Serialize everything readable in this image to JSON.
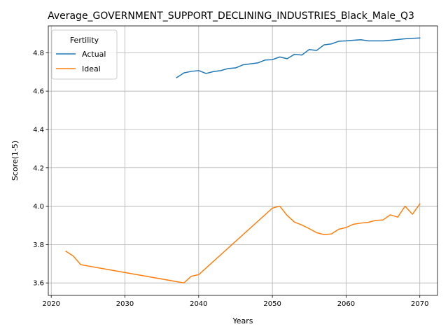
{
  "chart_data": {
    "type": "line",
    "title": "Average_GOVERNMENT_SUPPORT_DECLINING_INDUSTRIES_Black_Male_Q3",
    "xlabel": "Years",
    "ylabel": "Score(1-5)",
    "xlim": [
      2019.6,
      2072.4
    ],
    "ylim": [
      3.535,
      4.94
    ],
    "xticks": [
      2020,
      2030,
      2040,
      2050,
      2060,
      2070
    ],
    "yticks": [
      3.6,
      3.8,
      4.0,
      4.2,
      4.4,
      4.6,
      4.8
    ],
    "ytick_labels": [
      "3.6",
      "3.8",
      "4.0",
      "4.2",
      "4.4",
      "4.6",
      "4.8"
    ],
    "grid": true,
    "legend": {
      "title": "Fertility",
      "placement": "top-left"
    },
    "series": [
      {
        "name": "Actual",
        "color": "#1f77b4",
        "x": [
          2037,
          2038,
          2039,
          2040,
          2041,
          2042,
          2043,
          2044,
          2045,
          2046,
          2047,
          2048,
          2049,
          2050,
          2051,
          2052,
          2053,
          2054,
          2055,
          2056,
          2057,
          2058,
          2059,
          2060,
          2061,
          2062,
          2063,
          2064,
          2065,
          2066,
          2067,
          2068,
          2069,
          2070
        ],
        "y": [
          4.67,
          4.695,
          4.703,
          4.707,
          4.692,
          4.702,
          4.707,
          4.718,
          4.721,
          4.737,
          4.742,
          4.747,
          4.762,
          4.764,
          4.778,
          4.769,
          4.792,
          4.788,
          4.817,
          4.812,
          4.841,
          4.846,
          4.86,
          4.862,
          4.865,
          4.868,
          4.862,
          4.862,
          4.862,
          4.865,
          4.869,
          4.873,
          4.875,
          4.877
        ]
      },
      {
        "name": "Ideal",
        "color": "#ff7f0e",
        "x": [
          2022,
          2023,
          2024,
          2038,
          2039,
          2040,
          2050,
          2051,
          2052,
          2053,
          2054,
          2055,
          2056,
          2057,
          2058,
          2059,
          2060,
          2061,
          2062,
          2063,
          2064,
          2065,
          2066,
          2067,
          2068,
          2069,
          2070
        ],
        "y": [
          3.765,
          3.74,
          3.695,
          3.6,
          3.635,
          3.643,
          3.99,
          4.0,
          3.952,
          3.917,
          3.902,
          3.883,
          3.862,
          3.852,
          3.855,
          3.88,
          3.889,
          3.906,
          3.912,
          3.916,
          3.926,
          3.928,
          3.955,
          3.943,
          4.0,
          3.958,
          4.012
        ]
      }
    ]
  }
}
